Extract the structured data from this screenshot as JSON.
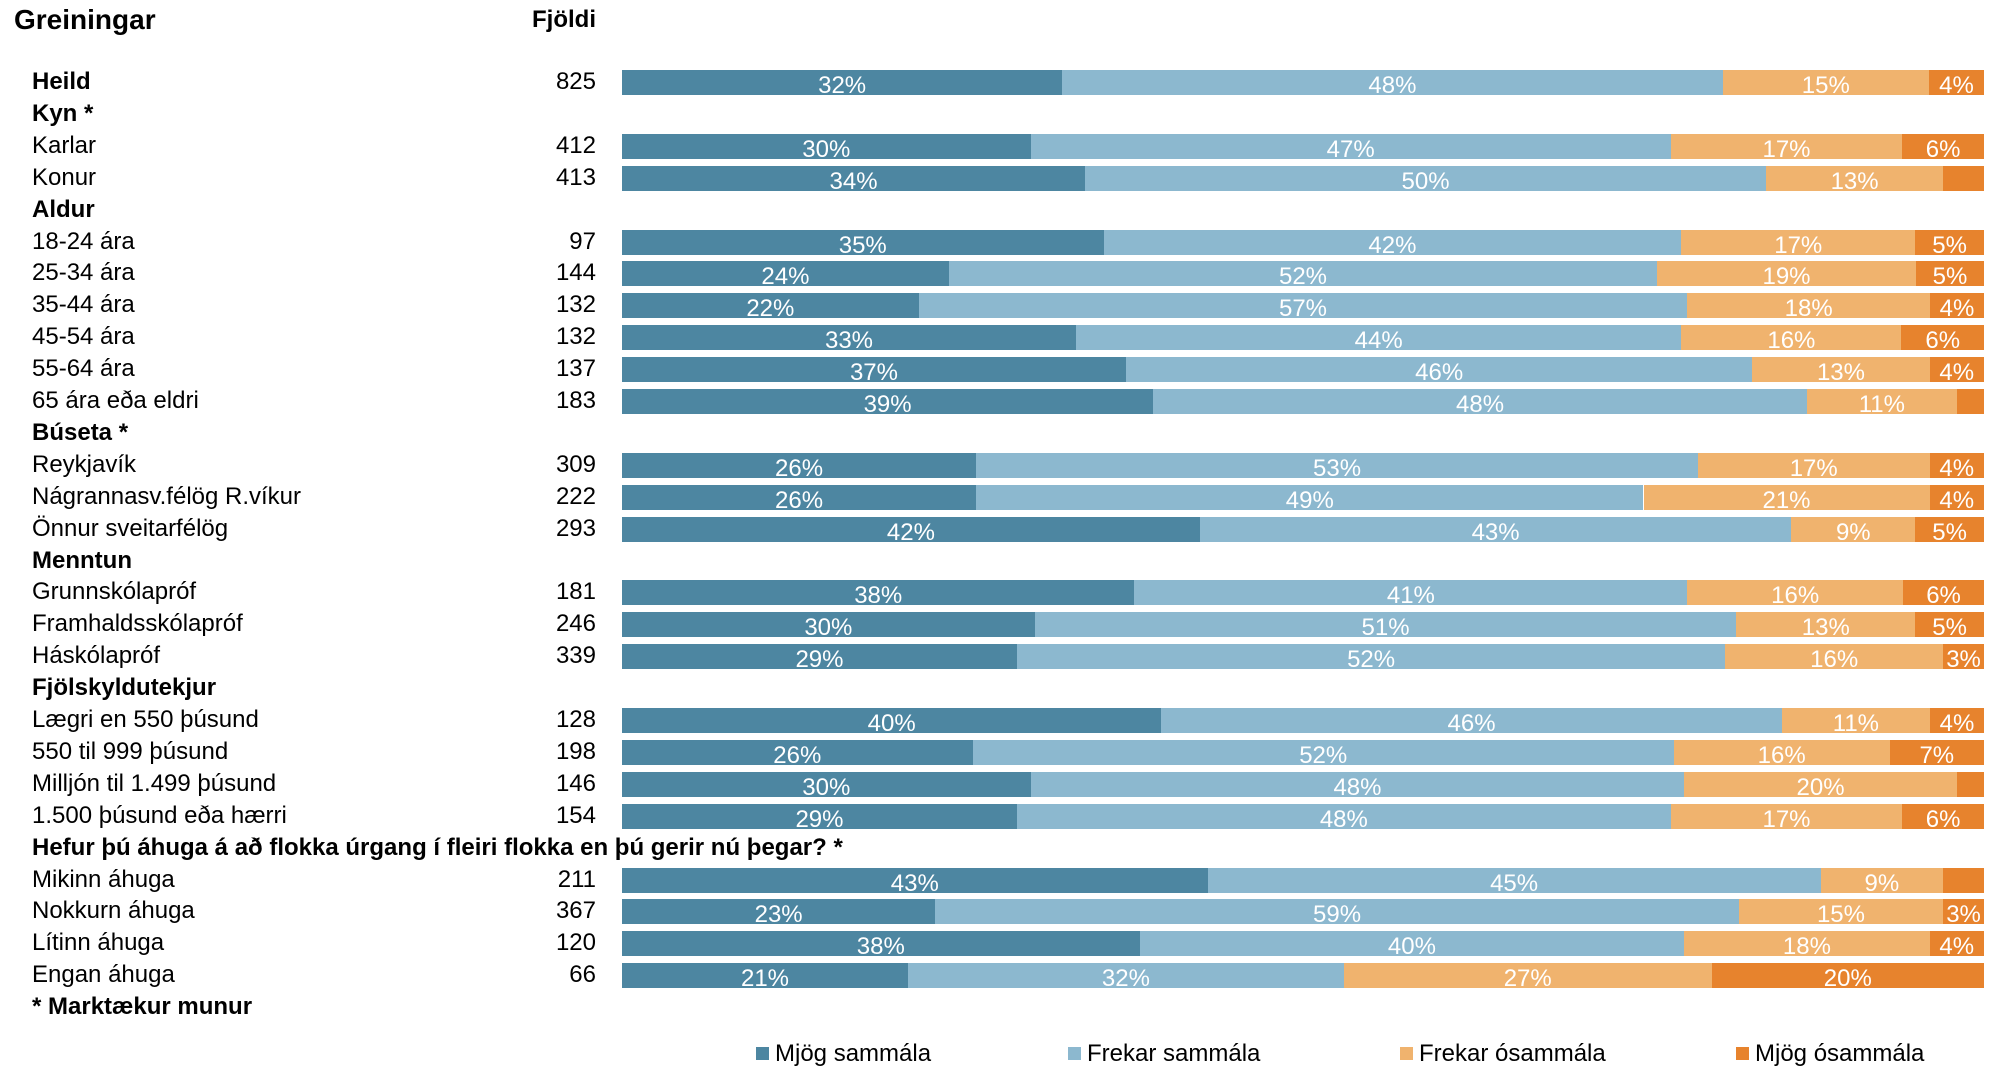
{
  "header": {
    "title": "Greiningar",
    "count_label": "Fjöldi"
  },
  "footnote": "* Marktækur munur",
  "chart_data": {
    "type": "bar",
    "orientation": "horizontal",
    "stacked": true,
    "normalized_to": 100,
    "unit": "%",
    "legend_position": "bottom",
    "xlim": [
      0,
      100
    ],
    "series": [
      {
        "name": "Mjög sammála",
        "color": "#4d86a1"
      },
      {
        "name": "Frekar sammála",
        "color": "#8cb8cf"
      },
      {
        "name": "Frekar ósammála",
        "color": "#f0b36e"
      },
      {
        "name": "Mjög ósammála",
        "color": "#e7832d"
      }
    ],
    "rows": [
      {
        "label": "Heild",
        "kind": "total",
        "n": "825",
        "values": [
          32,
          48,
          15,
          4
        ]
      },
      {
        "label": "Kyn *",
        "kind": "group"
      },
      {
        "label": "Karlar",
        "kind": "item",
        "n": "412",
        "values": [
          30,
          47,
          17,
          6
        ]
      },
      {
        "label": "Konur",
        "kind": "item",
        "n": "413",
        "values": [
          34,
          50,
          13,
          3
        ],
        "labels": [
          "34%",
          "50%",
          "13%",
          ""
        ]
      },
      {
        "label": "Aldur",
        "kind": "group"
      },
      {
        "label": "18-24 ára",
        "kind": "item",
        "n": "97",
        "values": [
          35,
          42,
          17,
          5
        ]
      },
      {
        "label": "25-34 ára",
        "kind": "item",
        "n": "144",
        "values": [
          24,
          52,
          19,
          5
        ]
      },
      {
        "label": "35-44 ára",
        "kind": "item",
        "n": "132",
        "values": [
          22,
          57,
          18,
          4
        ]
      },
      {
        "label": "45-54 ára",
        "kind": "item",
        "n": "132",
        "values": [
          33,
          44,
          16,
          6
        ]
      },
      {
        "label": "55-64 ára",
        "kind": "item",
        "n": "137",
        "values": [
          37,
          46,
          13,
          4
        ]
      },
      {
        "label": "65 ára eða eldri",
        "kind": "item",
        "n": "183",
        "values": [
          39,
          48,
          11,
          2
        ],
        "labels": [
          "39%",
          "48%",
          "11%",
          ""
        ]
      },
      {
        "label": "Búseta *",
        "kind": "group"
      },
      {
        "label": "Reykjavík",
        "kind": "item",
        "n": "309",
        "values": [
          26,
          53,
          17,
          4
        ]
      },
      {
        "label": "Nágrannasv.félög R.víkur",
        "kind": "item",
        "n": "222",
        "values": [
          26,
          49,
          21,
          4
        ]
      },
      {
        "label": "Önnur sveitarfélög",
        "kind": "item",
        "n": "293",
        "values": [
          42,
          43,
          9,
          5
        ]
      },
      {
        "label": "Menntun",
        "kind": "group"
      },
      {
        "label": "Grunnskólapróf",
        "kind": "item",
        "n": "181",
        "values": [
          38,
          41,
          16,
          6
        ]
      },
      {
        "label": "Framhaldsskólapróf",
        "kind": "item",
        "n": "246",
        "values": [
          30,
          51,
          13,
          5
        ]
      },
      {
        "label": "Háskólapróf",
        "kind": "item",
        "n": "339",
        "values": [
          29,
          52,
          16,
          3
        ]
      },
      {
        "label": "Fjölskyldutekjur",
        "kind": "group"
      },
      {
        "label": "Lægri en 550 þúsund",
        "kind": "item",
        "n": "128",
        "values": [
          40,
          46,
          11,
          4
        ]
      },
      {
        "label": "550 til 999 þúsund",
        "kind": "item",
        "n": "198",
        "values": [
          26,
          52,
          16,
          7
        ]
      },
      {
        "label": "Milljón til 1.499 þúsund",
        "kind": "item",
        "n": "146",
        "values": [
          30,
          48,
          20,
          2
        ],
        "labels": [
          "30%",
          "48%",
          "20%",
          ""
        ]
      },
      {
        "label": "1.500 þúsund eða hærri",
        "kind": "item",
        "n": "154",
        "values": [
          29,
          48,
          17,
          6
        ]
      },
      {
        "label": "Hefur þú áhuga á að flokka úrgang í fleiri flokka en þú gerir nú þegar? *",
        "kind": "group"
      },
      {
        "label": "Mikinn áhuga",
        "kind": "item",
        "n": "211",
        "values": [
          43,
          45,
          9,
          3
        ],
        "labels": [
          "43%",
          "45%",
          "9%",
          ""
        ]
      },
      {
        "label": "Nokkurn áhuga",
        "kind": "item",
        "n": "367",
        "values": [
          23,
          59,
          15,
          3
        ]
      },
      {
        "label": "Lítinn áhuga",
        "kind": "item",
        "n": "120",
        "values": [
          38,
          40,
          18,
          4
        ]
      },
      {
        "label": "Engan áhuga",
        "kind": "item",
        "n": "66",
        "values": [
          21,
          32,
          27,
          20
        ]
      }
    ]
  }
}
